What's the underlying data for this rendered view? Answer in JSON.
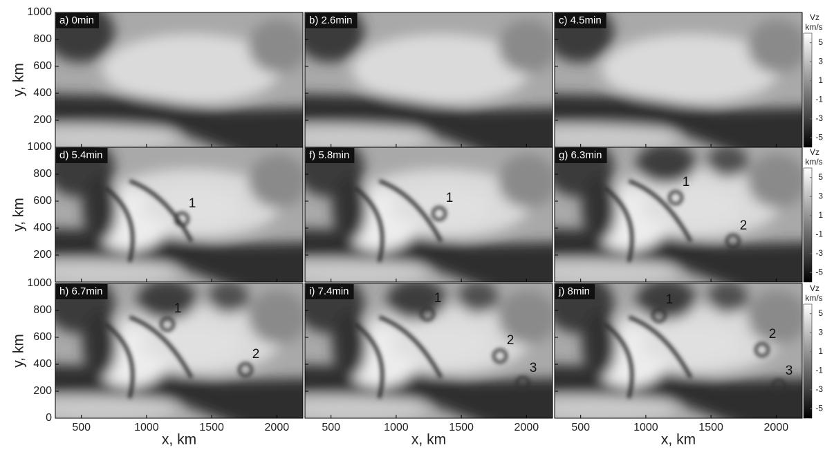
{
  "chart_data": {
    "type": "heatmap",
    "xlabel": "x, km",
    "ylabel": "y, km",
    "xlim": [
      300,
      2200
    ],
    "xticks": [
      500,
      1000,
      1500,
      2000
    ],
    "ylim": [
      0,
      1000
    ],
    "yticks": [
      0,
      200,
      400,
      600,
      800,
      1000
    ],
    "colorbar": {
      "title": "Vz",
      "unit": "km/s",
      "lim": [
        -6,
        6
      ],
      "ticks": [
        5,
        3,
        1,
        -1,
        -3,
        -5
      ]
    },
    "panels": [
      {
        "label": "a) 0min",
        "annotations": []
      },
      {
        "label": "b) 2.6min",
        "annotations": []
      },
      {
        "label": "c) 4.5min",
        "annotations": []
      },
      {
        "label": "d) 5.4min",
        "annotations": [
          "1"
        ]
      },
      {
        "label": "f) 5.8min",
        "annotations": [
          "1"
        ]
      },
      {
        "label": "g) 6.3min",
        "annotations": [
          "1",
          "2"
        ]
      },
      {
        "label": "h) 6.7min",
        "annotations": [
          "1",
          "2"
        ]
      },
      {
        "label": "i) 7.4min",
        "annotations": [
          "1",
          "2",
          "3"
        ]
      },
      {
        "label": "j) 8min",
        "annotations": [
          "1",
          "2",
          "3"
        ]
      }
    ]
  }
}
